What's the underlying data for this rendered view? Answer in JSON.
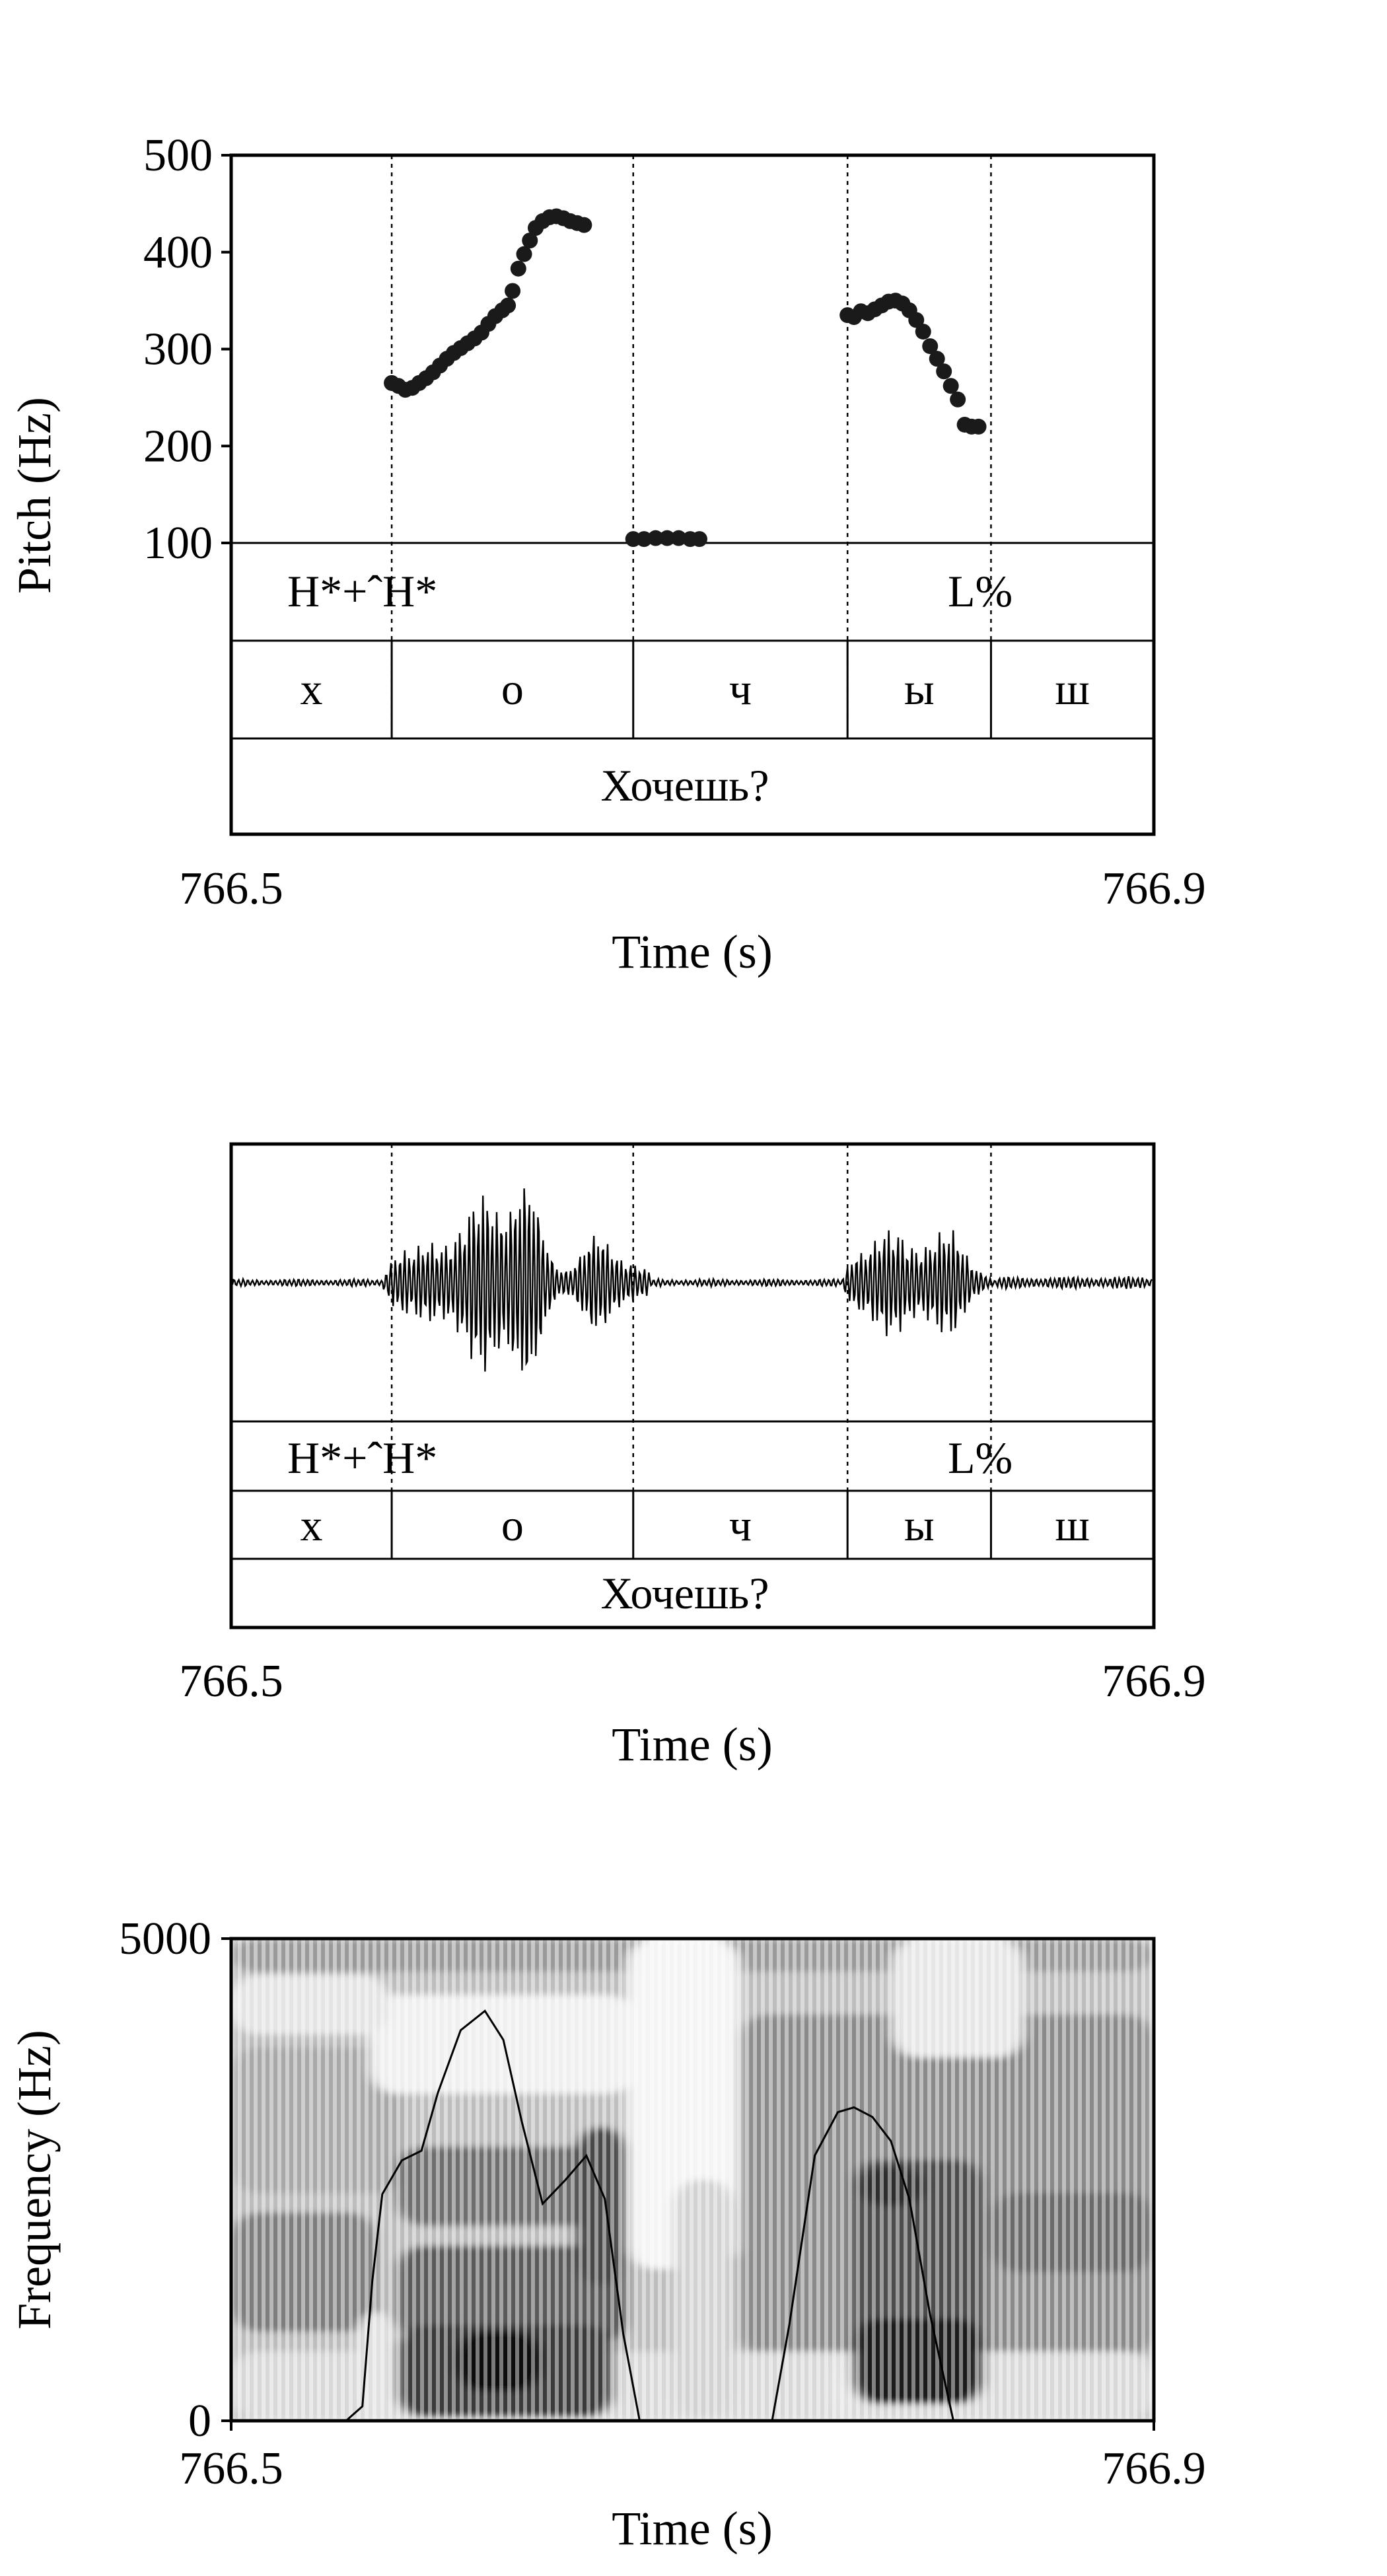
{
  "chart_data": [
    {
      "type": "scatter",
      "panel": "pitch-track",
      "xlabel": "Time (s)",
      "ylabel": "Pitch (Hz)",
      "xlim": [
        766.5,
        766.9
      ],
      "ylim": [
        100,
        500
      ],
      "x_tick_labels": [
        "766.5",
        "766.9"
      ],
      "y_tick_labels": [
        "100",
        "200",
        "300",
        "400",
        "500"
      ],
      "grid": false,
      "boundaries": [
        766.5696,
        766.6743,
        766.7672,
        766.8294
      ],
      "series": [
        {
          "points": [
            [
              766.5696,
              265
            ],
            [
              766.5725,
              262
            ],
            [
              766.5755,
              258
            ],
            [
              766.5785,
              260
            ],
            [
              766.5815,
              265
            ],
            [
              766.5845,
              270
            ],
            [
              766.5875,
              276
            ],
            [
              766.5905,
              283
            ],
            [
              766.5935,
              290
            ],
            [
              766.5965,
              296
            ],
            [
              766.5995,
              301
            ],
            [
              766.6025,
              306
            ],
            [
              766.6055,
              311
            ],
            [
              766.6085,
              317
            ],
            [
              766.6115,
              326
            ],
            [
              766.6145,
              334
            ],
            [
              766.6175,
              340
            ],
            [
              766.62,
              345
            ],
            [
              766.622,
              360
            ],
            [
              766.6245,
              383
            ],
            [
              766.627,
              398
            ],
            [
              766.6295,
              412
            ],
            [
              766.632,
              425
            ],
            [
              766.635,
              432
            ],
            [
              766.638,
              436
            ],
            [
              766.641,
              437
            ],
            [
              766.644,
              435
            ],
            [
              766.647,
              432
            ],
            [
              766.65,
              430
            ],
            [
              766.653,
              428
            ],
            [
              766.6743,
              104
            ],
            [
              766.679,
              104
            ],
            [
              766.684,
              105
            ],
            [
              766.689,
              105
            ],
            [
              766.694,
              105
            ],
            [
              766.699,
              104
            ],
            [
              766.703,
              104
            ],
            [
              766.7672,
              335
            ],
            [
              766.77,
              333
            ],
            [
              766.773,
              339
            ],
            [
              766.776,
              337
            ],
            [
              766.779,
              341
            ],
            [
              766.782,
              345
            ],
            [
              766.785,
              349
            ],
            [
              766.788,
              350
            ],
            [
              766.791,
              347
            ],
            [
              766.794,
              340
            ],
            [
              766.797,
              330
            ],
            [
              766.8,
              318
            ],
            [
              766.803,
              303
            ],
            [
              766.806,
              290
            ],
            [
              766.809,
              277
            ],
            [
              766.812,
              262
            ],
            [
              766.815,
              248
            ],
            [
              766.818,
              222
            ],
            [
              766.821,
              220
            ],
            [
              766.824,
              220
            ]
          ]
        }
      ]
    },
    {
      "type": "line",
      "panel": "waveform",
      "xlabel": "Time (s)",
      "xlim": [
        766.5,
        766.9
      ],
      "x_tick_labels": [
        "766.5",
        "766.9"
      ],
      "boundaries": [
        766.5696,
        766.6743,
        766.7672,
        766.8294
      ]
    },
    {
      "type": "heatmap",
      "panel": "spectrogram",
      "xlabel": "Time (s)",
      "ylabel": "Frequency (Hz)",
      "xlim": [
        766.5,
        766.9
      ],
      "ylim": [
        0,
        5000
      ],
      "x_tick_labels": [
        "766.5",
        "766.9"
      ],
      "y_tick_labels": [
        "0",
        "5000"
      ],
      "intensity_contour": [
        [
          766.5498,
          0
        ],
        [
          766.5569,
          150
        ],
        [
          766.5612,
          1450
        ],
        [
          766.5655,
          2350
        ],
        [
          766.574,
          2700
        ],
        [
          766.5825,
          2800
        ],
        [
          766.5896,
          3400
        ],
        [
          766.5995,
          4050
        ],
        [
          766.61,
          4250
        ],
        [
          766.618,
          3950
        ],
        [
          766.626,
          3100
        ],
        [
          766.635,
          2250
        ],
        [
          766.645,
          2500
        ],
        [
          766.654,
          2750
        ],
        [
          766.662,
          2300
        ],
        [
          766.67,
          900
        ],
        [
          766.6771,
          0
        ],
        [
          766.7345,
          0
        ],
        [
          766.742,
          1000
        ],
        [
          766.753,
          2750
        ],
        [
          766.763,
          3200
        ],
        [
          766.77,
          3250
        ],
        [
          766.778,
          3150
        ],
        [
          766.786,
          2900
        ],
        [
          766.794,
          2300
        ],
        [
          766.803,
          1100
        ],
        [
          766.8131,
          0
        ]
      ]
    }
  ],
  "tiers": {
    "tones": [
      {
        "label": "H*+ˆH*",
        "time": 766.5696
      },
      {
        "label": "L%",
        "time": 766.8294
      }
    ],
    "segments": [
      {
        "label": "х",
        "start": 766.5,
        "end": 766.5696
      },
      {
        "label": "о",
        "start": 766.5696,
        "end": 766.6743
      },
      {
        "label": "ч",
        "start": 766.6743,
        "end": 766.7672
      },
      {
        "label": "ы",
        "start": 766.7672,
        "end": 766.8294
      },
      {
        "label": "ш",
        "start": 766.8294,
        "end": 766.9
      }
    ],
    "word": "Хочешь?"
  },
  "colors": {
    "ink": "#000000",
    "background": "#ffffff",
    "spectrogram_dark": "#222222"
  }
}
